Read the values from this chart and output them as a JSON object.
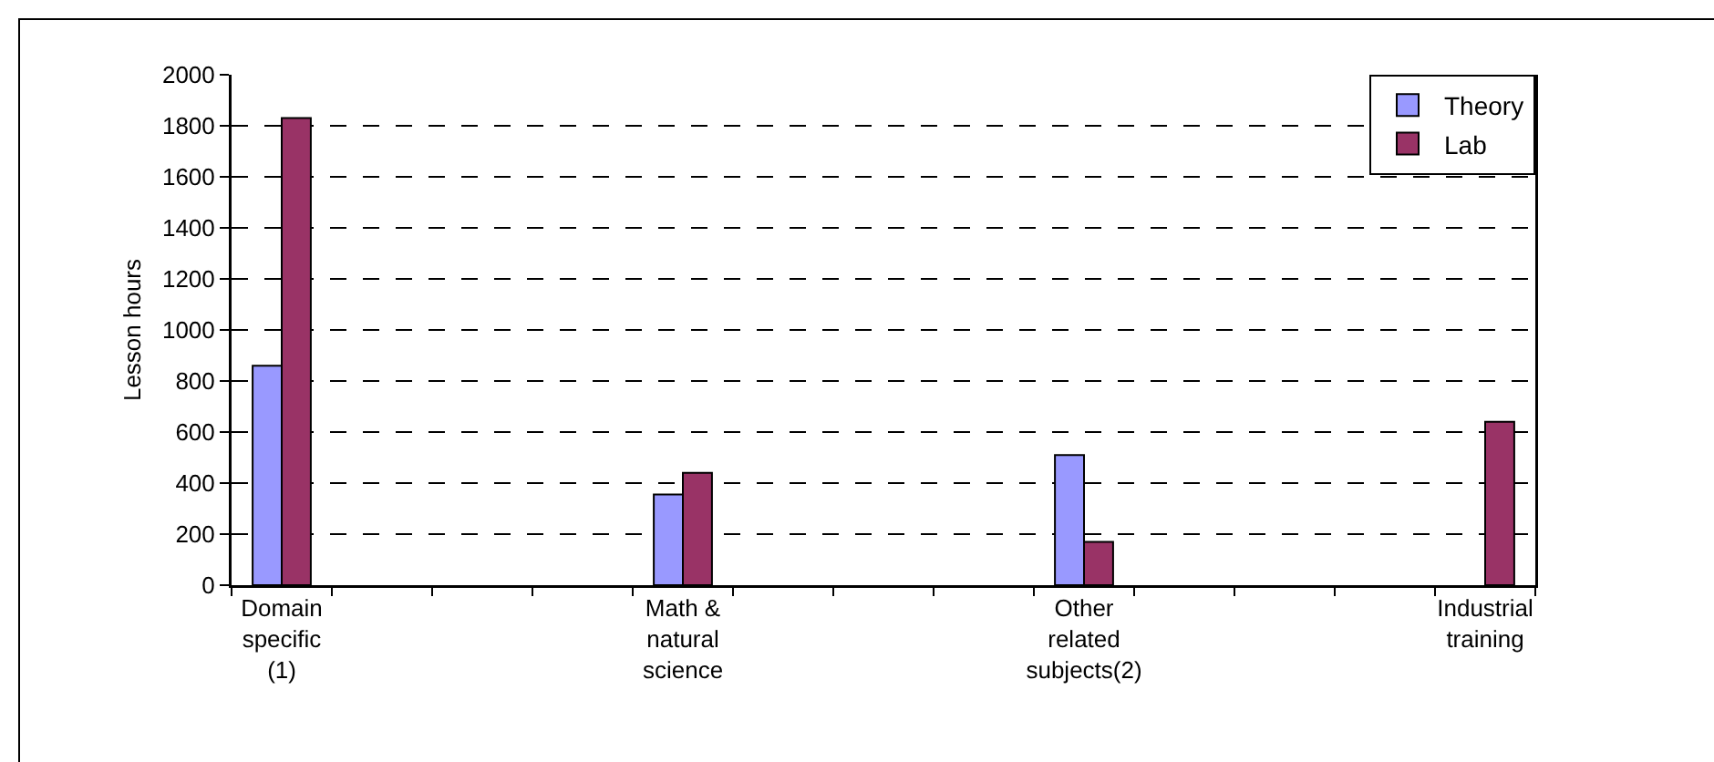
{
  "chart_data": {
    "type": "bar",
    "categories": [
      "Domain specific (1)",
      null,
      null,
      null,
      "Math & natural science",
      null,
      null,
      null,
      "Other related subjects(2)",
      null,
      null,
      null,
      "Industrial training"
    ],
    "ylabel": "Lesson hours",
    "series": [
      {
        "name": "Theory",
        "color": "#9999ff",
        "values": [
          860,
          null,
          null,
          null,
          355,
          null,
          null,
          null,
          510,
          null,
          null,
          null,
          null
        ]
      },
      {
        "name": "Lab",
        "color": "#993366",
        "values": [
          1830,
          null,
          null,
          null,
          440,
          null,
          null,
          null,
          170,
          null,
          null,
          null,
          640
        ]
      }
    ],
    "ylim": [
      0,
      2000
    ],
    "yticks": [
      0,
      200,
      400,
      600,
      800,
      1000,
      1200,
      1400,
      1600,
      1800,
      2000
    ],
    "grid": "y",
    "legend": "top right"
  }
}
